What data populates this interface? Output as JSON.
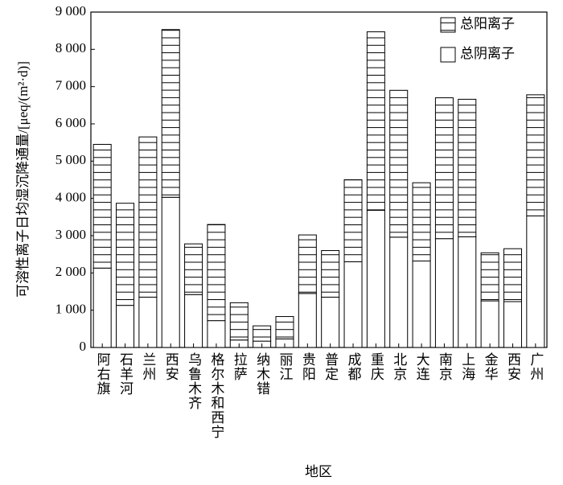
{
  "chart_data": {
    "type": "stacked_bar",
    "x_label": "地区",
    "y_label": "可溶性离子日均湿沉降通量/[μeq/(m²·d)]",
    "categories": [
      "阿右旗",
      "石羊河",
      "兰州",
      "西安",
      "乌鲁木齐",
      "格尔木和西宁",
      "拉萨",
      "纳木错",
      "丽江",
      "贵阳",
      "普定",
      "成都",
      "重庆",
      "北京",
      "大连",
      "南京",
      "上海",
      "金华",
      "西安",
      "广州"
    ],
    "series": [
      {
        "name": "总阴离子",
        "color": "#ffffff",
        "values": [
          2130,
          1130,
          1350,
          4030,
          1420,
          720,
          200,
          170,
          230,
          1450,
          1350,
          2300,
          3680,
          2960,
          2320,
          2920,
          2970,
          1250,
          1230,
          3530
        ]
      },
      {
        "name": "总阳离子",
        "color": "#ffffff",
        "hatch": "horizontal",
        "values": [
          3320,
          2740,
          4300,
          4500,
          1360,
          2580,
          1000,
          410,
          600,
          1570,
          1250,
          2200,
          4790,
          3940,
          2100,
          3780,
          3690,
          1290,
          1420,
          3250
        ]
      }
    ],
    "ylim": [
      0,
      9000
    ],
    "yticks": [
      0,
      {
        "value": 1000,
        "label": "1 000"
      },
      {
        "value": 2000,
        "label": "2 000"
      },
      {
        "value": 3000,
        "label": "3 000"
      },
      {
        "value": 4000,
        "label": "4 000"
      },
      {
        "value": 5000,
        "label": "5 000"
      },
      {
        "value": 6000,
        "label": "6 000"
      },
      {
        "value": 7000,
        "label": "7 000"
      },
      {
        "value": 8000,
        "label": "8 000"
      },
      {
        "value": 9000,
        "label": "9 000"
      }
    ],
    "legend": "upper right",
    "grid": false
  }
}
